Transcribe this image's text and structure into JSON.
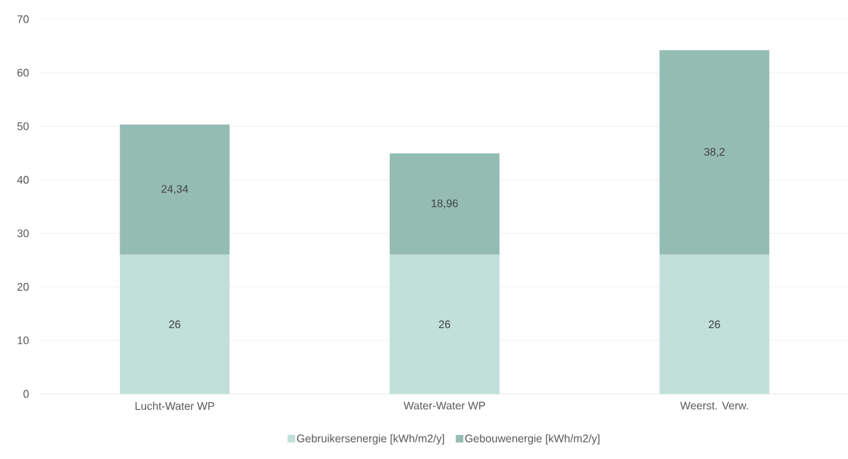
{
  "chart_data": {
    "type": "bar",
    "stacked": true,
    "categories": [
      "Lucht-Water WP",
      "Water-Water WP",
      "Weerst. Verw."
    ],
    "series": [
      {
        "name": "Gebruikersenergie [kWh/m2/y]",
        "color": "#c0e0d9",
        "values": [
          26,
          26,
          26
        ],
        "value_labels": [
          "26",
          "26",
          "26"
        ]
      },
      {
        "name": "Gebouwenergie [kWh/m2/y]",
        "color": "#95bcb3",
        "values": [
          24.34,
          18.96,
          38.2
        ],
        "value_labels": [
          "24,34",
          "18,96",
          "38,2"
        ]
      }
    ],
    "ylim": [
      0,
      70
    ],
    "yticks": [
      0,
      10,
      20,
      30,
      40,
      50,
      60,
      70
    ],
    "grid": "y",
    "legend": "bottom"
  }
}
